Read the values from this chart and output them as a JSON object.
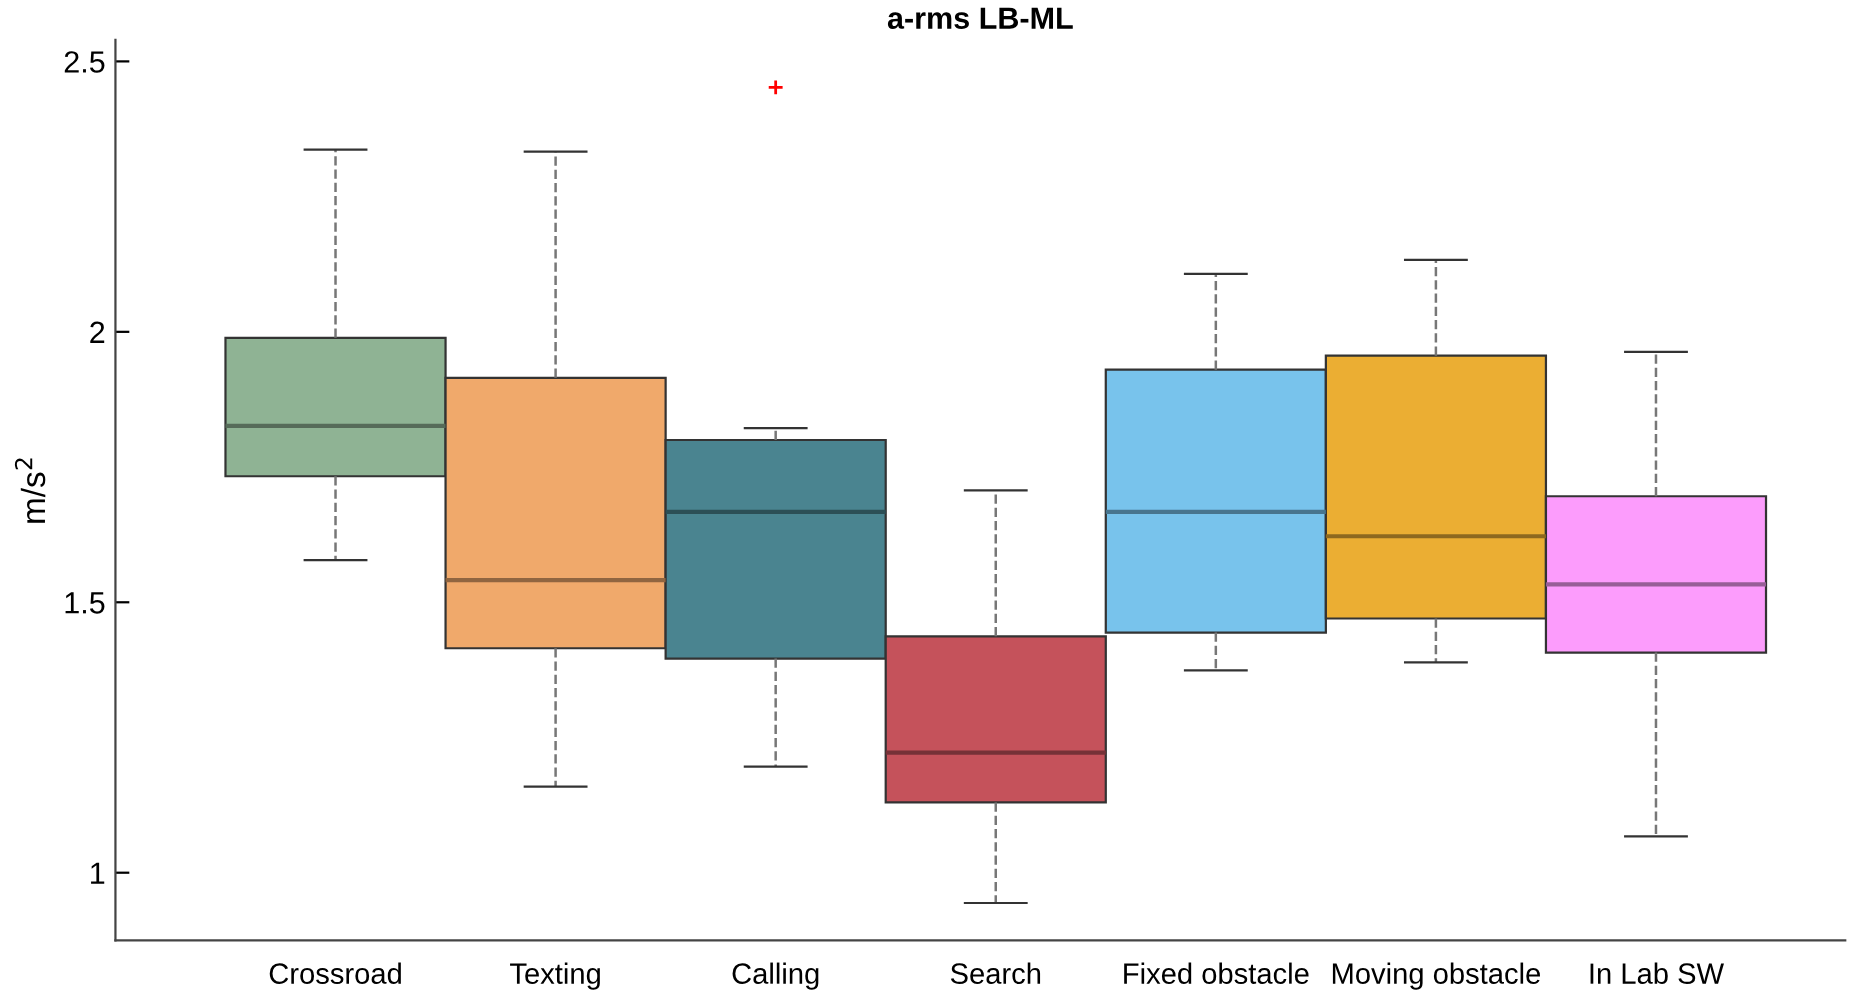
{
  "chart_data": {
    "type": "box",
    "title": "a-rms LB-ML",
    "ylabel": "m/s$^{2}$",
    "categories": [
      "Crossroad",
      "Texting",
      "Calling",
      "Search",
      "Fixed obstacle",
      "Moving obstacle",
      "In Lab SW"
    ],
    "colors": [
      "#8fb394",
      "#f0a96b",
      "#4a8490",
      "#c5525b",
      "#78c3ec",
      "#ebae33",
      "#fc9cfc"
    ],
    "boxes": [
      {
        "low": 1.578,
        "q1": 1.733,
        "median": 1.826,
        "q3": 1.989,
        "high": 2.337
      },
      {
        "low": 1.159,
        "q1": 1.415,
        "median": 1.541,
        "q3": 1.915,
        "high": 2.333
      },
      {
        "low": 1.196,
        "q1": 1.396,
        "median": 1.667,
        "q3": 1.8,
        "high": 1.822,
        "outliers": [
          2.452
        ]
      },
      {
        "low": 0.944,
        "q1": 1.13,
        "median": 1.222,
        "q3": 1.437,
        "high": 1.707
      },
      {
        "low": 1.374,
        "q1": 1.444,
        "median": 1.667,
        "q3": 1.93,
        "high": 2.107
      },
      {
        "low": 1.389,
        "q1": 1.47,
        "median": 1.622,
        "q3": 1.956,
        "high": 2.133
      },
      {
        "low": 1.067,
        "q1": 1.407,
        "median": 1.533,
        "q3": 1.696,
        "high": 1.963
      }
    ],
    "ylim": [
      0.875,
      2.54
    ],
    "yticks": [
      1,
      1.5,
      2,
      2.5
    ],
    "grid": false
  }
}
